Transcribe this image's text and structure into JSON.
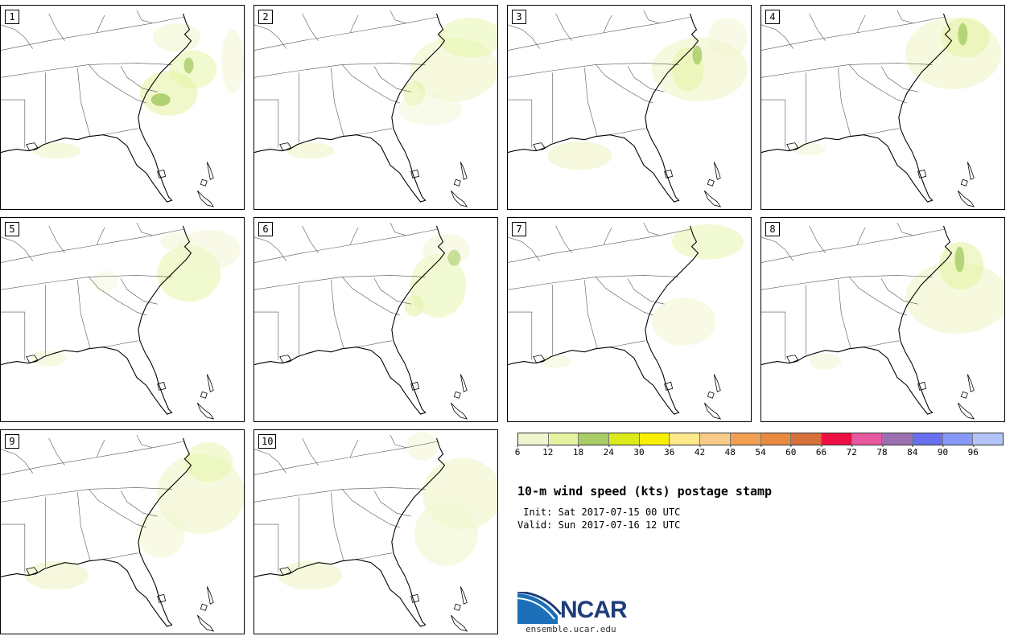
{
  "members": [
    {
      "label": "1",
      "pattern": 0
    },
    {
      "label": "2",
      "pattern": 1
    },
    {
      "label": "3",
      "pattern": 2
    },
    {
      "label": "4",
      "pattern": 3
    },
    {
      "label": "5",
      "pattern": 4
    },
    {
      "label": "6",
      "pattern": 5
    },
    {
      "label": "7",
      "pattern": 6
    },
    {
      "label": "8",
      "pattern": 7
    },
    {
      "label": "9",
      "pattern": 8
    },
    {
      "label": "10",
      "pattern": 9
    }
  ],
  "colorbar": {
    "colors": [
      "#f2f6d0",
      "#e3f3a0",
      "#a8cc66",
      "#dcea1a",
      "#f8f000",
      "#fde88a",
      "#f8cc88",
      "#f0a050",
      "#e88a40",
      "#d8703c",
      "#ee1044",
      "#e858a0",
      "#9c70b0",
      "#6870f0",
      "#8898f8",
      "#b4c4f8"
    ],
    "tick_labels": [
      "6",
      "12",
      "18",
      "24",
      "30",
      "36",
      "42",
      "48",
      "54",
      "60",
      "66",
      "72",
      "78",
      "84",
      "90",
      "96"
    ]
  },
  "title": "10-m wind speed (kts) postage stamp",
  "init_text": " Init: Sat 2017-07-15 00 UTC",
  "valid_text": "Valid: Sun 2017-07-16 12 UTC",
  "logo": {
    "name": "NCAR",
    "url": "ensemble.ucar.edu"
  }
}
